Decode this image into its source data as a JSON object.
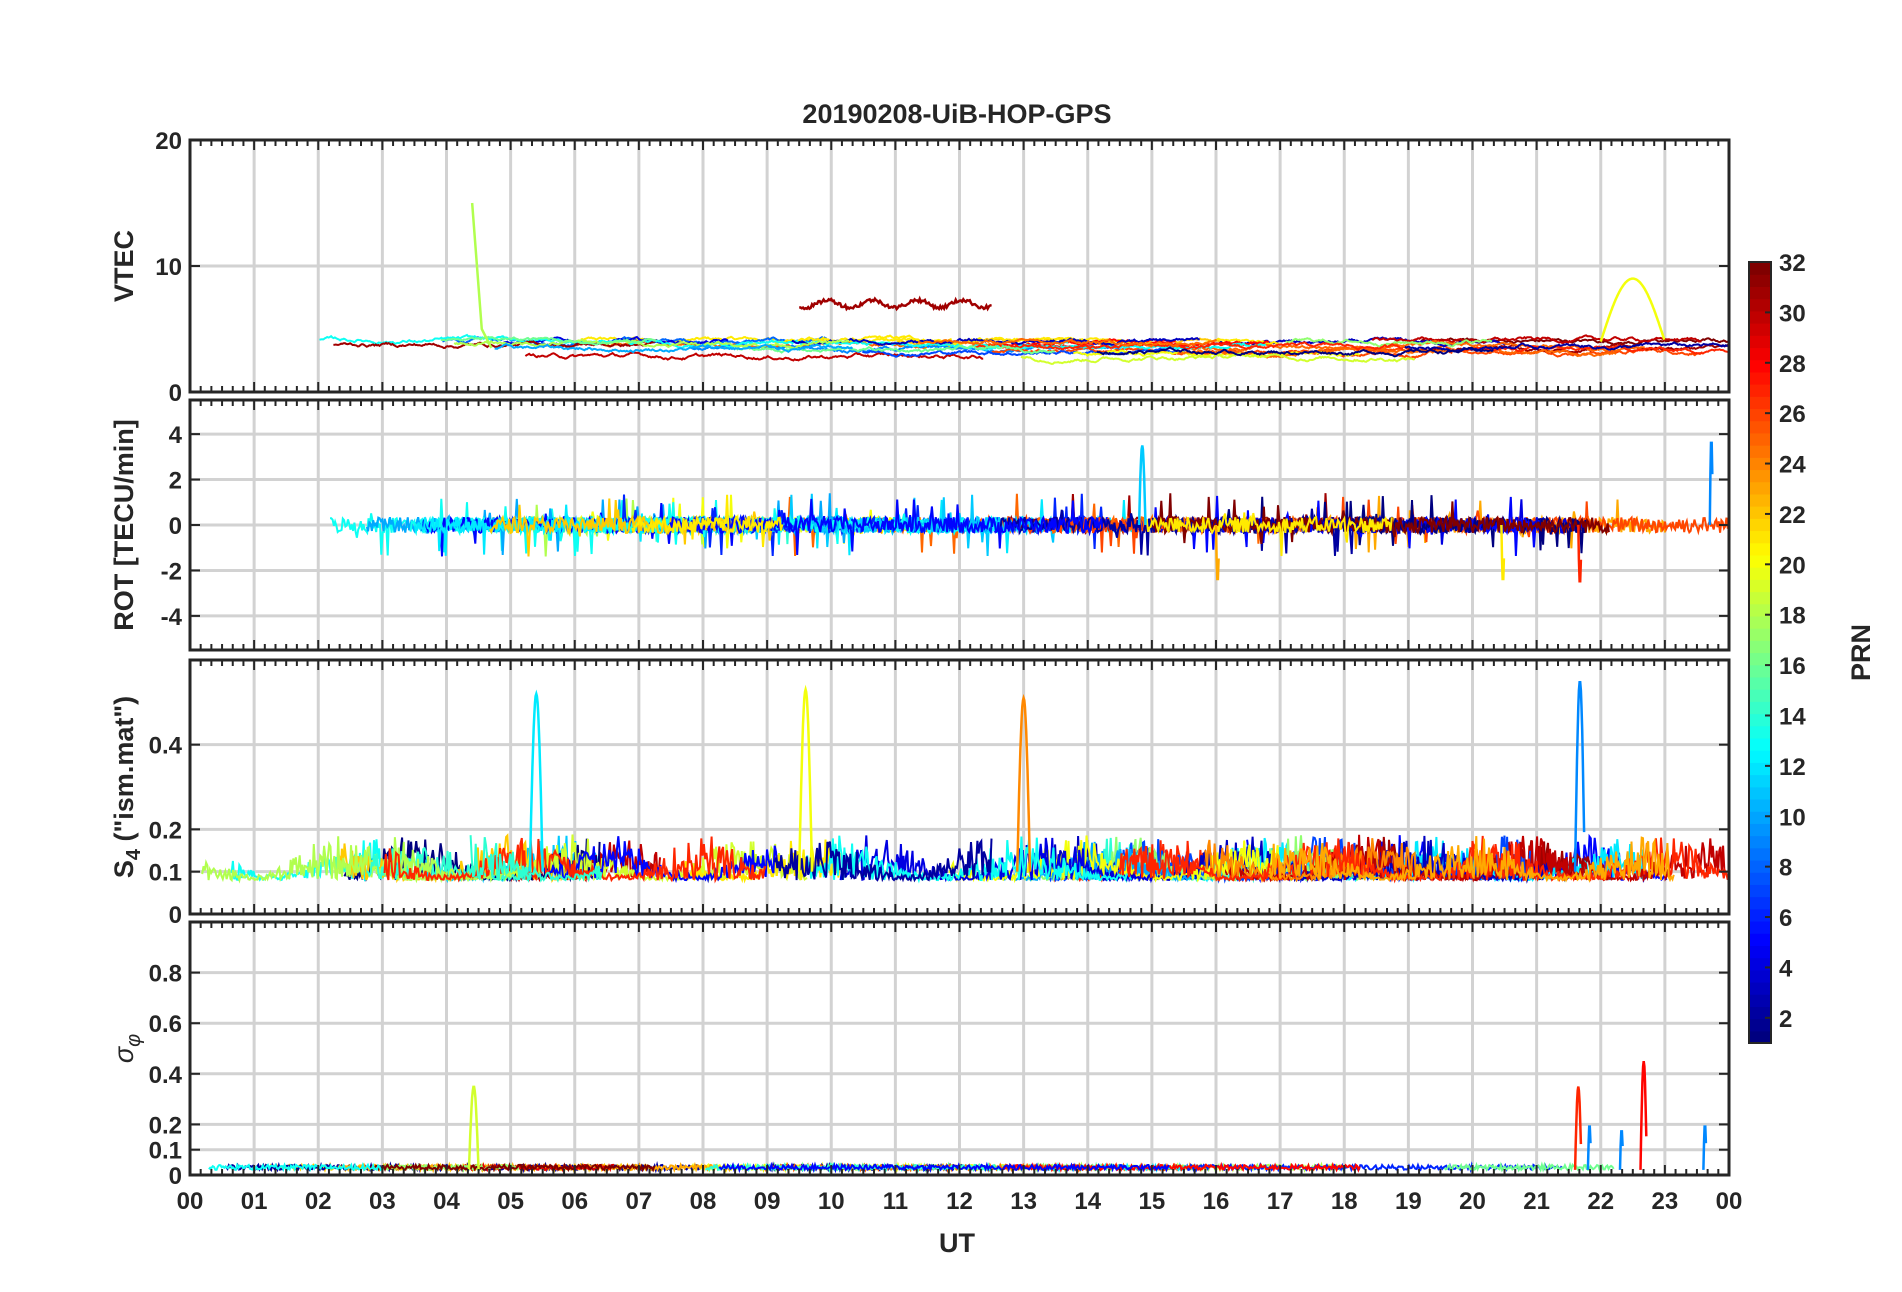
{
  "chart_data": {
    "type": "line",
    "title": "20190208-UiB-HOP-GPS",
    "xlabel": "UT",
    "x_tick_labels": [
      "00",
      "01",
      "02",
      "03",
      "04",
      "05",
      "06",
      "07",
      "08",
      "09",
      "10",
      "11",
      "12",
      "13",
      "14",
      "15",
      "16",
      "17",
      "18",
      "19",
      "20",
      "21",
      "22",
      "23",
      "00"
    ],
    "xlim": [
      0,
      24
    ],
    "colorbar": {
      "label": "PRN",
      "range": [
        1,
        32
      ],
      "tick_labels": [
        "2",
        "4",
        "6",
        "8",
        "10",
        "12",
        "14",
        "16",
        "18",
        "20",
        "22",
        "24",
        "26",
        "28",
        "30",
        "32"
      ],
      "colormap": "jet"
    },
    "panels": [
      {
        "id": "vtec",
        "ylabel": "VTEC",
        "ylim": [
          0,
          20
        ],
        "yticks": [
          0,
          10,
          20
        ],
        "ytick_labels": [
          "0",
          "10",
          "20"
        ],
        "baseline": 3.2,
        "amplitude": 0.9,
        "series_count": 36,
        "notable_values": [
          "PRN ~18 spike to ~15 near 04:25 UT",
          "PRN ~31 arc ~7 between 09:30 and 12:30 UT",
          "values up to ~9 near 22:30 UT"
        ]
      },
      {
        "id": "rot",
        "ylabel": "ROT [TECU/min]",
        "ylim": [
          -5.5,
          5.5
        ],
        "yticks": [
          -4,
          -2,
          0,
          2,
          4
        ],
        "ytick_labels": [
          "-4",
          "-2",
          "0",
          "2",
          "4"
        ],
        "baseline": 0,
        "amplitude": 0.35,
        "series_count": 30,
        "notable_values": [
          "spikes to ~3.5 near 14:50 UT",
          "spikes to ~-2.5 near 16:00 and 20:30 UT",
          "enhanced activity 21:40-24:00 UT up to ~3.8"
        ]
      },
      {
        "id": "s4",
        "ylabel": "S4 (\"ism.mat\")",
        "ylabel_main": "S",
        "ylabel_sub": "4",
        "ylabel_rest": " (\"ism.mat\")",
        "ylim": [
          0,
          0.6
        ],
        "yticks": [
          0,
          0.1,
          0.2,
          0.4
        ],
        "ytick_labels": [
          "0",
          "0.1",
          "0.2",
          "0.4"
        ],
        "baseline": 0.08,
        "amplitude": 0.1,
        "series_count": 32,
        "notable_values": [
          "peaks ~0.5 near 05:25, 09:35, 13:00 UT",
          "peak ~0.55 near 21:40 UT"
        ]
      },
      {
        "id": "sigma_phi",
        "ylabel": "σ φ",
        "ylabel_main": "σ",
        "ylabel_sub": "φ",
        "ylim": [
          0,
          1
        ],
        "yticks": [
          0,
          0.1,
          0.2,
          0.4,
          0.6,
          0.8
        ],
        "ytick_labels": [
          "0",
          "0.1",
          "0.2",
          "0.4",
          "0.6",
          "0.8"
        ],
        "baseline": 0.02,
        "amplitude": 0.01,
        "series_count": 18,
        "notable_values": [
          "spike ~0.35 near 04:25 UT",
          "spikes ~0.35 near 21:40 UT and ~0.45 near 22:40 UT",
          "spikes ~0.2 near 21:50, 22:20, 23:40 UT"
        ]
      }
    ]
  }
}
